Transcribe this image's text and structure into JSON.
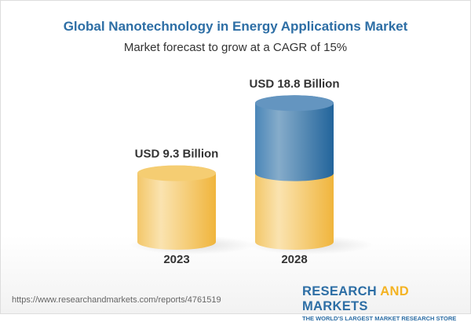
{
  "chart_data": {
    "type": "bar",
    "style": "3d-cylinder",
    "title": "Global Nanotechnology in Energy Applications Market",
    "subtitle": "Market forecast to grow at a CAGR of 15%",
    "categories": [
      "2023",
      "2028"
    ],
    "values": [
      9.3,
      18.8
    ],
    "data_labels": [
      "USD 9.3 Billion",
      "USD 18.8 Billion"
    ],
    "unit": "USD Billion",
    "grid": false,
    "colors": {
      "base": "#f4c35a",
      "growth": "#3b78ab"
    }
  },
  "footer": {
    "url": "https://www.researchandmarkets.com/reports/4761519",
    "brand_part1": "RESEARCH ",
    "brand_part2": "AND",
    "brand_part3": " MARKETS",
    "tagline": "THE WORLD'S LARGEST MARKET RESEARCH STORE"
  }
}
